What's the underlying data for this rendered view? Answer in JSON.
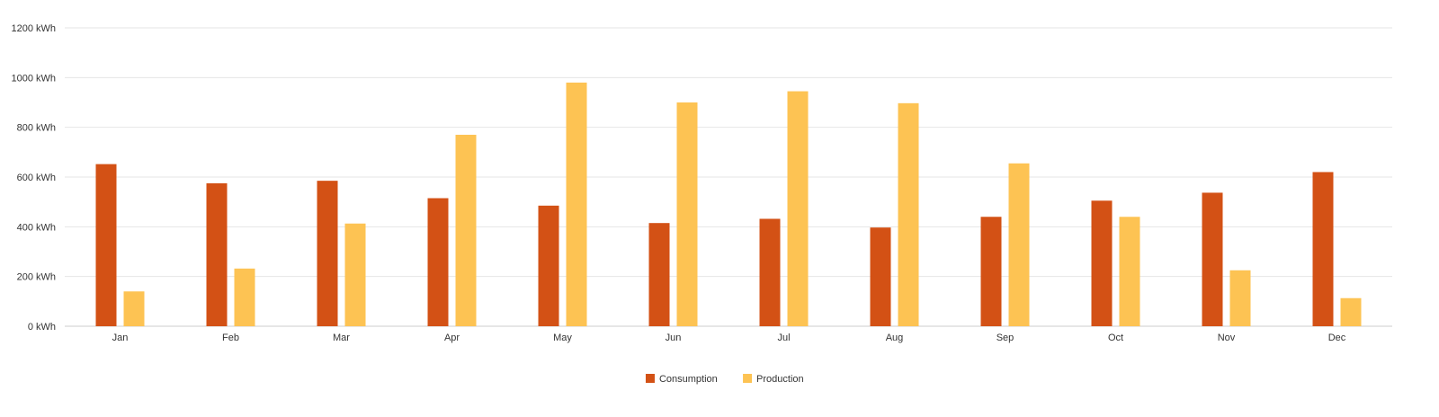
{
  "chart_data": {
    "type": "bar",
    "title": "",
    "xlabel": "",
    "ylabel": "",
    "categories": [
      "Jan",
      "Feb",
      "Mar",
      "Apr",
      "May",
      "Jun",
      "Jul",
      "Aug",
      "Sep",
      "Oct",
      "Nov",
      "Dec"
    ],
    "series": [
      {
        "name": "Consumption",
        "color": "#d35115",
        "values": [
          652,
          575,
          585,
          515,
          485,
          415,
          432,
          397,
          440,
          505,
          537,
          620
        ]
      },
      {
        "name": "Production",
        "color": "#fdc353",
        "values": [
          140,
          232,
          413,
          770,
          980,
          900,
          945,
          897,
          655,
          440,
          225,
          113
        ]
      }
    ],
    "ylim": [
      0,
      1200
    ],
    "y_ticks": [
      0,
      200,
      400,
      600,
      800,
      1000,
      1200
    ],
    "y_tick_labels": [
      "0 kWh",
      "200 kWh",
      "400 kWh",
      "600 kWh",
      "800 kWh",
      "1000 kWh",
      "1200 kWh"
    ],
    "grid": true,
    "legend_position": "bottom-center"
  }
}
